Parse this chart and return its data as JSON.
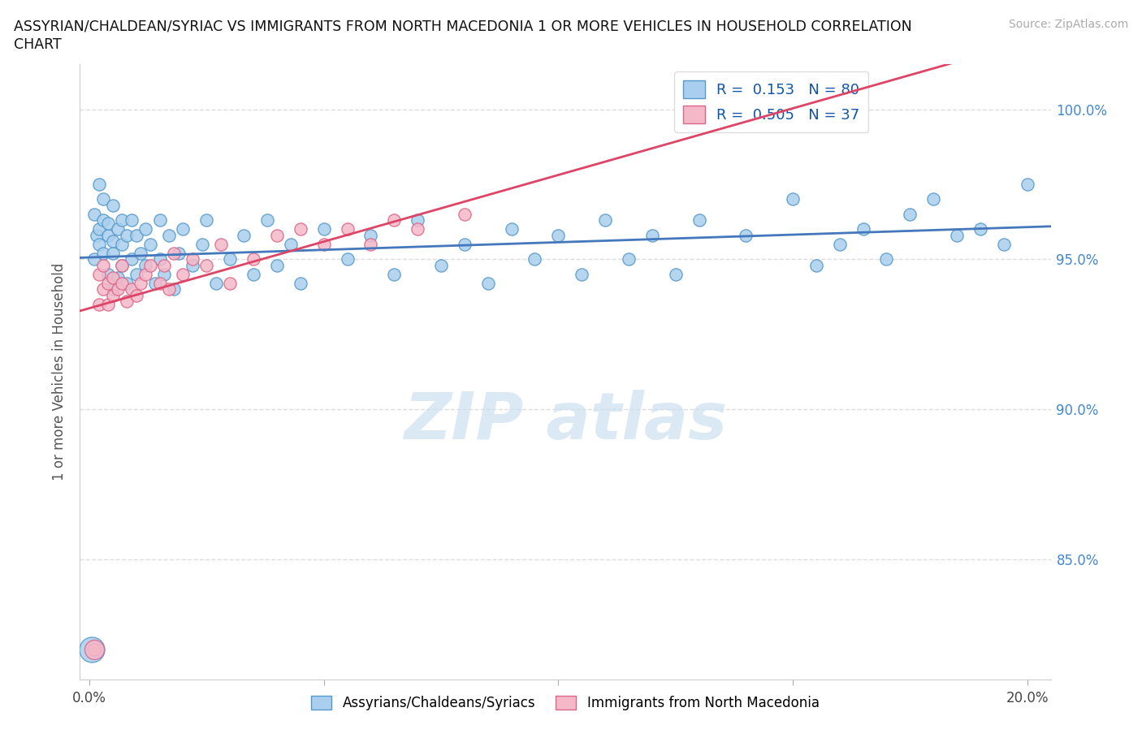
{
  "title_line1": "ASSYRIAN/CHALDEAN/SYRIAC VS IMMIGRANTS FROM NORTH MACEDONIA 1 OR MORE VEHICLES IN HOUSEHOLD CORRELATION",
  "title_line2": "CHART",
  "source": "Source: ZipAtlas.com",
  "ylabel": "1 or more Vehicles in Household",
  "legend_labels": [
    "Assyrians/Chaldeans/Syriacs",
    "Immigrants from North Macedonia"
  ],
  "blue_R": 0.153,
  "blue_N": 80,
  "pink_R": 0.505,
  "pink_N": 37,
  "blue_color": "#aacfee",
  "pink_color": "#f4b8c8",
  "blue_edge_color": "#5599cc",
  "pink_edge_color": "#dd6688",
  "blue_line_color": "#4477bb",
  "pink_line_color": "#dd4466",
  "grid_color": "#dddddd",
  "watermark_color": "#cce0f0",
  "xlim": [
    -0.002,
    0.205
  ],
  "ylim": [
    0.81,
    1.015
  ],
  "x_ticks": [
    0.0,
    0.05,
    0.1,
    0.15,
    0.2
  ],
  "x_tick_labels": [
    "0.0%",
    "",
    "",
    "",
    "20.0%"
  ],
  "y_ticks": [
    0.85,
    0.9,
    0.95,
    1.0
  ],
  "y_tick_labels": [
    "85.0%",
    "90.0%",
    "95.0%",
    "100.0%"
  ],
  "blue_x": [
    0.0005,
    0.001,
    0.001,
    0.0015,
    0.002,
    0.002,
    0.002,
    0.003,
    0.003,
    0.003,
    0.004,
    0.004,
    0.004,
    0.005,
    0.005,
    0.005,
    0.005,
    0.006,
    0.006,
    0.007,
    0.007,
    0.007,
    0.008,
    0.008,
    0.009,
    0.009,
    0.01,
    0.01,
    0.011,
    0.012,
    0.012,
    0.013,
    0.014,
    0.015,
    0.015,
    0.016,
    0.017,
    0.018,
    0.019,
    0.02,
    0.022,
    0.024,
    0.025,
    0.027,
    0.03,
    0.033,
    0.035,
    0.038,
    0.04,
    0.043,
    0.045,
    0.05,
    0.055,
    0.06,
    0.065,
    0.07,
    0.075,
    0.08,
    0.085,
    0.09,
    0.095,
    0.1,
    0.105,
    0.11,
    0.115,
    0.12,
    0.125,
    0.13,
    0.14,
    0.15,
    0.155,
    0.16,
    0.165,
    0.17,
    0.175,
    0.18,
    0.185,
    0.19,
    0.195,
    0.2
  ],
  "blue_y": [
    0.82,
    0.95,
    0.965,
    0.958,
    0.955,
    0.96,
    0.975,
    0.952,
    0.963,
    0.97,
    0.945,
    0.958,
    0.962,
    0.94,
    0.952,
    0.956,
    0.968,
    0.944,
    0.96,
    0.948,
    0.955,
    0.963,
    0.942,
    0.958,
    0.95,
    0.963,
    0.945,
    0.958,
    0.952,
    0.96,
    0.948,
    0.955,
    0.942,
    0.95,
    0.963,
    0.945,
    0.958,
    0.94,
    0.952,
    0.96,
    0.948,
    0.955,
    0.963,
    0.942,
    0.95,
    0.958,
    0.945,
    0.963,
    0.948,
    0.955,
    0.942,
    0.96,
    0.95,
    0.958,
    0.945,
    0.963,
    0.948,
    0.955,
    0.942,
    0.96,
    0.95,
    0.958,
    0.945,
    0.963,
    0.95,
    0.958,
    0.945,
    0.963,
    0.958,
    0.97,
    0.948,
    0.955,
    0.96,
    0.95,
    0.965,
    0.97,
    0.958,
    0.96,
    0.955,
    0.975
  ],
  "pink_x": [
    0.001,
    0.002,
    0.002,
    0.003,
    0.003,
    0.004,
    0.004,
    0.005,
    0.005,
    0.006,
    0.007,
    0.007,
    0.008,
    0.009,
    0.01,
    0.011,
    0.012,
    0.013,
    0.015,
    0.016,
    0.017,
    0.018,
    0.02,
    0.022,
    0.025,
    0.028,
    0.03,
    0.035,
    0.04,
    0.045,
    0.05,
    0.055,
    0.06,
    0.065,
    0.07,
    0.08,
    0.16
  ],
  "pink_y": [
    0.82,
    0.935,
    0.945,
    0.94,
    0.948,
    0.935,
    0.942,
    0.938,
    0.944,
    0.94,
    0.942,
    0.948,
    0.936,
    0.94,
    0.938,
    0.942,
    0.945,
    0.948,
    0.942,
    0.948,
    0.94,
    0.952,
    0.945,
    0.95,
    0.948,
    0.955,
    0.942,
    0.95,
    0.958,
    0.96,
    0.955,
    0.96,
    0.955,
    0.963,
    0.96,
    0.965,
    1.0
  ]
}
